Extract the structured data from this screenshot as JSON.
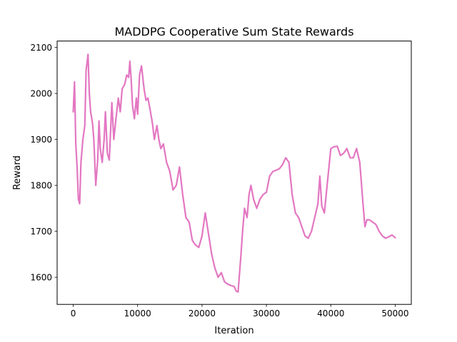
{
  "chart_data": {
    "type": "line",
    "title": "MADDPG Cooperative Sum State Rewards",
    "xlabel": "Iteration",
    "ylabel": "Reward",
    "xlim": [
      -2500,
      52500
    ],
    "ylim": [
      1541,
      2114
    ],
    "xticks": [
      0,
      10000,
      20000,
      30000,
      40000,
      50000
    ],
    "xtick_labels": [
      "0",
      "10000",
      "20000",
      "30000",
      "40000",
      "50000"
    ],
    "yticks": [
      1600,
      1700,
      1800,
      1900,
      2000,
      2100
    ],
    "ytick_labels": [
      "1600",
      "1700",
      "1800",
      "1900",
      "2000",
      "2100"
    ],
    "grid": false,
    "legend": "none",
    "series": [
      {
        "color": "#e377c2",
        "x": [
          0,
          200,
          400,
          600,
          800,
          1000,
          1200,
          1500,
          1800,
          2000,
          2300,
          2500,
          2700,
          3000,
          3200,
          3500,
          3800,
          4000,
          4200,
          4500,
          4800,
          5000,
          5300,
          5600,
          6000,
          6300,
          6600,
          7000,
          7300,
          7600,
          8000,
          8300,
          8600,
          8800,
          9000,
          9200,
          9500,
          9800,
          10000,
          10300,
          10600,
          11000,
          11300,
          11600,
          12000,
          12300,
          12600,
          13000,
          13300,
          13600,
          14000,
          14500,
          15000,
          15500,
          16000,
          16500,
          17000,
          17500,
          18000,
          18500,
          19000,
          19500,
          20000,
          20500,
          21000,
          21500,
          22000,
          22500,
          23000,
          23500,
          24000,
          24500,
          25000,
          25300,
          25600,
          26000,
          26300,
          26600,
          27000,
          27300,
          27600,
          28000,
          28500,
          29000,
          29500,
          30000,
          30500,
          31000,
          31500,
          32000,
          32500,
          33000,
          33500,
          34000,
          34500,
          35000,
          35500,
          36000,
          36500,
          37000,
          37500,
          38000,
          38300,
          38600,
          39000,
          39500,
          40000,
          40500,
          41000,
          41500,
          42000,
          42500,
          43000,
          43500,
          44000,
          44500,
          45000,
          45300,
          45600,
          46000,
          46500,
          47000,
          47500,
          48000,
          48500,
          49000,
          49500,
          50000
        ],
        "values": [
          1960,
          2025,
          1890,
          1840,
          1770,
          1760,
          1850,
          1900,
          1930,
          2050,
          2085,
          2000,
          1960,
          1935,
          1900,
          1800,
          1855,
          1940,
          1880,
          1850,
          1900,
          1960,
          1870,
          1855,
          1980,
          1900,
          1940,
          1990,
          1960,
          2010,
          2020,
          2040,
          2035,
          2070,
          2030,
          1975,
          1945,
          1990,
          1955,
          2040,
          2060,
          2010,
          1985,
          1990,
          1960,
          1935,
          1900,
          1930,
          1900,
          1880,
          1890,
          1850,
          1830,
          1790,
          1800,
          1840,
          1780,
          1730,
          1720,
          1680,
          1670,
          1665,
          1690,
          1740,
          1695,
          1650,
          1620,
          1600,
          1610,
          1590,
          1585,
          1582,
          1580,
          1570,
          1568,
          1640,
          1700,
          1750,
          1730,
          1780,
          1800,
          1770,
          1750,
          1770,
          1780,
          1785,
          1820,
          1830,
          1833,
          1836,
          1845,
          1860,
          1850,
          1780,
          1740,
          1730,
          1710,
          1690,
          1685,
          1700,
          1730,
          1760,
          1820,
          1755,
          1740,
          1810,
          1880,
          1884,
          1885,
          1865,
          1870,
          1880,
          1860,
          1860,
          1880,
          1850,
          1760,
          1710,
          1725,
          1725,
          1720,
          1715,
          1700,
          1690,
          1685,
          1688,
          1692,
          1686
        ]
      }
    ]
  }
}
